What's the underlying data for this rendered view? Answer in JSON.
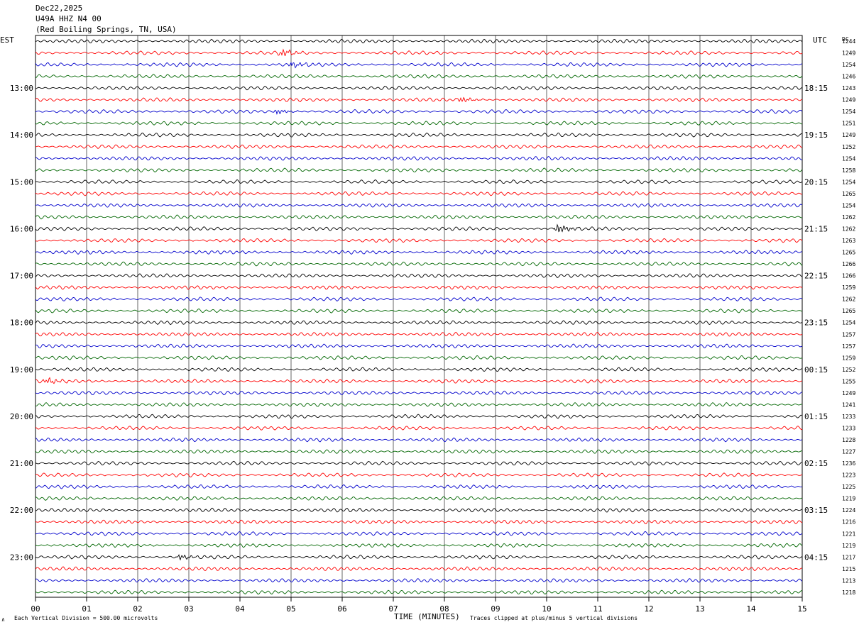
{
  "header": {
    "date": "Dec22,2025",
    "station": "U49A HHZ N4 00",
    "location": "(Red Boiling Springs, TN, USA)"
  },
  "chart_data": {
    "type": "line",
    "title": "",
    "left_axis_label": "EST",
    "right_axis_label": "UTC",
    "dc_label": "DC",
    "xlabel": "TIME (MINUTES)",
    "x_ticks": [
      "00",
      "01",
      "02",
      "03",
      "04",
      "05",
      "06",
      "07",
      "08",
      "09",
      "10",
      "11",
      "12",
      "13",
      "14",
      "15"
    ],
    "xlim": [
      0,
      15
    ],
    "grid": true,
    "trace_colors": [
      "#000000",
      "#ff0000",
      "#0000cc",
      "#006600"
    ],
    "left_hour_labels": [
      "13:00",
      "14:00",
      "15:00",
      "16:00",
      "17:00",
      "18:00",
      "19:00",
      "20:00",
      "21:00",
      "22:00",
      "23:00"
    ],
    "right_hour_labels": [
      "18:15",
      "19:15",
      "20:15",
      "21:15",
      "22:15",
      "23:15",
      "00:15",
      "01:15",
      "02:15",
      "03:15",
      "04:15"
    ],
    "dc_offsets": [
      1244,
      1249,
      1254,
      1246,
      1243,
      1249,
      1254,
      1251,
      1249,
      1252,
      1254,
      1258,
      1254,
      1265,
      1254,
      1262,
      1262,
      1263,
      1265,
      1266,
      1266,
      1259,
      1262,
      1265,
      1254,
      1257,
      1257,
      1259,
      1252,
      1255,
      1249,
      1241,
      1233,
      1233,
      1228,
      1227,
      1236,
      1223,
      1225,
      1219,
      1224,
      1216,
      1221,
      1219,
      1217,
      1215,
      1213,
      1218
    ],
    "events": [
      {
        "trace": 1,
        "minute": 4.8,
        "amplitude": 1.8
      },
      {
        "trace": 2,
        "minute": 5.0,
        "amplitude": 1.5
      },
      {
        "trace": 5,
        "minute": 8.3,
        "amplitude": 1.4
      },
      {
        "trace": 6,
        "minute": 4.7,
        "amplitude": 1.4
      },
      {
        "trace": 16,
        "minute": 10.2,
        "amplitude": 2.6
      },
      {
        "trace": 29,
        "minute": 0.2,
        "amplitude": 1.5
      },
      {
        "trace": 44,
        "minute": 2.8,
        "amplitude": 1.3
      }
    ],
    "annotation_scale": "Each Vertical Division =  500.00 microvolts",
    "annotation_clip": "Traces clipped at plus/minus 5 vertical divisions"
  }
}
